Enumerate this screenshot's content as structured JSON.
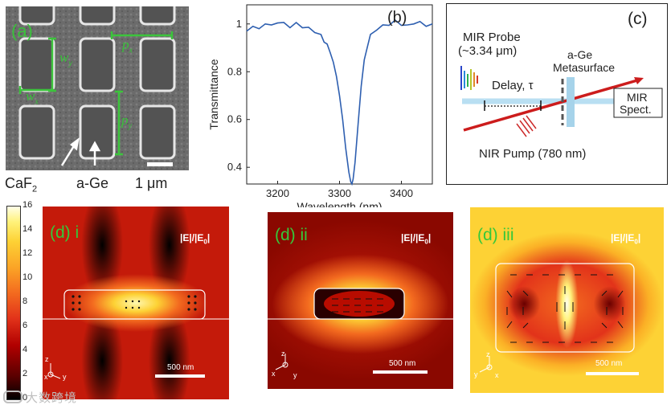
{
  "panel_a": {
    "label": "(a)",
    "dim_labels": {
      "wy": "w",
      "wy_sub": "y",
      "wx": "w",
      "wx_sub": "x",
      "px": "p",
      "px_sub": "x",
      "py": "p",
      "py_sub": "y"
    },
    "material_left": "CaF",
    "material_left_sub": "2",
    "material_right": "a-Ge",
    "scalebar": "1 μm"
  },
  "panel_b": {
    "label": "(b)",
    "chart_data": {
      "type": "line",
      "xlabel": "Wavelength (nm)",
      "ylabel": "Transmittance",
      "xlim": [
        3150,
        3450
      ],
      "ylim": [
        0.33,
        1.08
      ],
      "x_ticks": [
        "3200",
        "3300",
        "3400"
      ],
      "y_ticks": [
        "0.4",
        "0.6",
        "0.8",
        "1"
      ],
      "series": [
        {
          "name": "Transmittance",
          "color": "#2e5fb0",
          "x": [
            3150,
            3160,
            3170,
            3180,
            3190,
            3200,
            3210,
            3220,
            3230,
            3240,
            3250,
            3260,
            3270,
            3275,
            3280,
            3285,
            3290,
            3295,
            3300,
            3305,
            3310,
            3315,
            3318,
            3320,
            3322,
            3325,
            3330,
            3335,
            3340,
            3345,
            3350,
            3360,
            3370,
            3380,
            3390,
            3400,
            3410,
            3420,
            3430,
            3440,
            3450
          ],
          "y": [
            0.97,
            0.99,
            0.98,
            1.0,
            0.99,
            1.01,
            1.0,
            0.99,
            1.0,
            0.99,
            0.98,
            0.97,
            0.95,
            0.93,
            0.91,
            0.88,
            0.84,
            0.78,
            0.7,
            0.6,
            0.48,
            0.38,
            0.34,
            0.33,
            0.35,
            0.42,
            0.58,
            0.74,
            0.85,
            0.91,
            0.95,
            0.98,
            0.99,
            1.0,
            1.01,
            1.0,
            0.99,
            1.0,
            1.01,
            0.99,
            1.0
          ]
        }
      ]
    }
  },
  "panel_c": {
    "label": "(c)",
    "probe_title": "MIR Probe",
    "probe_wavelength": "(~3.34 μm)",
    "metasurface_line1": "a-Ge",
    "metasurface_line2": "Metasurface",
    "delay": "Delay, τ",
    "spect_line1": "MIR",
    "spect_line2": "Spect.",
    "pump": "NIR Pump (780 nm)",
    "colors": {
      "probe": "#b9dff2",
      "pump": "#cc1c1c"
    }
  },
  "colorbar": {
    "ticks": [
      "0",
      "2",
      "4",
      "6",
      "8",
      "10",
      "12",
      "14",
      "16"
    ]
  },
  "panel_d": [
    {
      "label": "(d) i",
      "field": "|E|/|E",
      "field_sub": "0",
      "field_end": "|",
      "scalebar": "500 nm",
      "axis_a": "z",
      "axis_b": "y",
      "axis_c": "x"
    },
    {
      "label": "(d) ii",
      "field": "|E|/|E",
      "field_sub": "0",
      "field_end": "|",
      "scalebar": "500 nm",
      "axis_a": "z",
      "axis_b": "y",
      "axis_c": "x"
    },
    {
      "label": "(d) iii",
      "field": "|E|/|E",
      "field_sub": "0",
      "field_end": "|",
      "scalebar": "500 nm",
      "axis_a": "z",
      "axis_b": "x",
      "axis_c": "y"
    }
  ],
  "watermark": "大数跨境"
}
